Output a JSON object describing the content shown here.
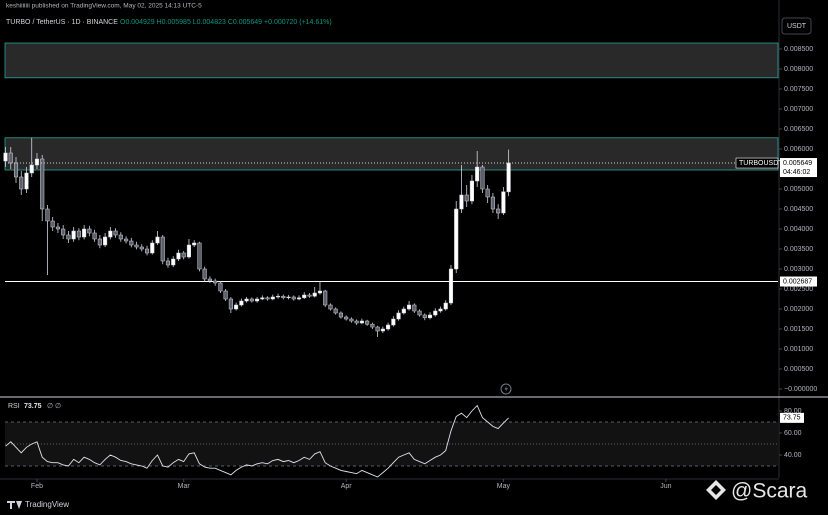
{
  "header": {
    "author_line": "keshiiiiiii published on TradingView.com, May 02, 2025 14:13 UTC-5",
    "symbol": "TURBO / TetherUS · 1D · BINANCE",
    "ohlc": "O0.004929 H0.005985 L0.004823 C0.005649 +0.000720 (+14.61%)",
    "currency": "USDT"
  },
  "chart_data": [
    {
      "type": "candlestick",
      "up_color": "#ffffff",
      "down_color": "#5d606b",
      "wick_color": "#d1d4dc",
      "open": [
        0.0057,
        0.0059,
        0.00565,
        0.0053,
        0.005,
        0.0054,
        0.0056,
        0.00575,
        0.0045,
        0.0042,
        0.00405,
        0.004,
        0.00385,
        0.00375,
        0.00395,
        0.0038,
        0.004,
        0.0039,
        0.00375,
        0.0036,
        0.0038,
        0.00395,
        0.00385,
        0.00375,
        0.0037,
        0.0036,
        0.00355,
        0.0035,
        0.0034,
        0.00365,
        0.0038,
        0.0032,
        0.0031,
        0.00325,
        0.0034,
        0.0033,
        0.0036,
        0.00365,
        0.003,
        0.00275,
        0.0027,
        0.00265,
        0.00245,
        0.00225,
        0.002,
        0.0021,
        0.0022,
        0.00225,
        0.0022,
        0.00225,
        0.00228,
        0.00225,
        0.0023,
        0.00232,
        0.00228,
        0.0023,
        0.00225,
        0.00228,
        0.00235,
        0.00232,
        0.0024,
        0.00245,
        0.0021,
        0.002,
        0.0019,
        0.0018,
        0.00175,
        0.0017,
        0.00165,
        0.0017,
        0.00162,
        0.00155,
        0.00145,
        0.0015,
        0.0016,
        0.00175,
        0.0019,
        0.002,
        0.0021,
        0.00195,
        0.00185,
        0.00178,
        0.00185,
        0.00195,
        0.002,
        0.00215,
        0.003,
        0.0045,
        0.00485,
        0.0047,
        0.0052,
        0.00555,
        0.005,
        0.0048,
        0.0045,
        0.0044,
        0.004929
      ],
      "high": [
        0.00605,
        0.00605,
        0.0058,
        0.00545,
        0.00555,
        0.00628,
        0.0059,
        0.00585,
        0.0046,
        0.0043,
        0.00415,
        0.0041,
        0.00395,
        0.00405,
        0.00402,
        0.0041,
        0.00408,
        0.00398,
        0.00385,
        0.0039,
        0.00405,
        0.00402,
        0.00392,
        0.00382,
        0.00378,
        0.00368,
        0.00362,
        0.00358,
        0.00372,
        0.00395,
        0.00385,
        0.00328,
        0.00332,
        0.00348,
        0.00345,
        0.00375,
        0.00372,
        0.00368,
        0.00306,
        0.00282,
        0.00276,
        0.0027,
        0.0025,
        0.0023,
        0.00216,
        0.00226,
        0.0023,
        0.00229,
        0.0023,
        0.00234,
        0.00232,
        0.00236,
        0.00238,
        0.00236,
        0.00235,
        0.00234,
        0.00234,
        0.00242,
        0.0024,
        0.00255,
        0.0027,
        0.00248,
        0.00214,
        0.00204,
        0.00194,
        0.00184,
        0.00179,
        0.00174,
        0.00176,
        0.00173,
        0.00166,
        0.00158,
        0.00156,
        0.00166,
        0.00182,
        0.00197,
        0.00206,
        0.0022,
        0.00214,
        0.00199,
        0.00189,
        0.00192,
        0.00202,
        0.00206,
        0.00222,
        0.0031,
        0.0047,
        0.0056,
        0.0051,
        0.00535,
        0.00595,
        0.0056,
        0.0051,
        0.0049,
        0.00462,
        0.00505,
        0.005985
      ],
      "low": [
        0.00555,
        0.0055,
        0.00515,
        0.00485,
        0.0049,
        0.0053,
        0.0055,
        0.0042,
        0.00285,
        0.00395,
        0.0039,
        0.00375,
        0.00365,
        0.00368,
        0.00372,
        0.00374,
        0.00382,
        0.00368,
        0.00352,
        0.00355,
        0.00374,
        0.00378,
        0.00368,
        0.00364,
        0.00354,
        0.00349,
        0.00344,
        0.00334,
        0.00336,
        0.0036,
        0.00312,
        0.00303,
        0.00305,
        0.0032,
        0.00324,
        0.00326,
        0.00355,
        0.00294,
        0.00268,
        0.00265,
        0.00258,
        0.0024,
        0.0022,
        0.0019,
        0.00196,
        0.00206,
        0.00216,
        0.00216,
        0.00216,
        0.00222,
        0.00221,
        0.00222,
        0.00226,
        0.00224,
        0.00224,
        0.00221,
        0.00222,
        0.00225,
        0.00228,
        0.00229,
        0.00236,
        0.00205,
        0.00196,
        0.00186,
        0.00176,
        0.00171,
        0.00166,
        0.0016,
        0.00162,
        0.00158,
        0.0015,
        0.0013,
        0.0014,
        0.00146,
        0.00156,
        0.00171,
        0.00186,
        0.00196,
        0.0019,
        0.00181,
        0.00172,
        0.00174,
        0.00181,
        0.00191,
        0.00196,
        0.0021,
        0.0029,
        0.0044,
        0.00455,
        0.00462,
        0.00505,
        0.0049,
        0.00465,
        0.0044,
        0.00425,
        0.00435,
        0.004823
      ],
      "close": [
        0.0059,
        0.00565,
        0.0053,
        0.005,
        0.0054,
        0.0056,
        0.00575,
        0.0045,
        0.0042,
        0.00405,
        0.004,
        0.00385,
        0.00375,
        0.00395,
        0.0038,
        0.004,
        0.0039,
        0.00375,
        0.0036,
        0.0038,
        0.00395,
        0.00385,
        0.00375,
        0.0037,
        0.0036,
        0.00355,
        0.0035,
        0.0034,
        0.00365,
        0.0038,
        0.0032,
        0.0031,
        0.00325,
        0.0034,
        0.0033,
        0.0036,
        0.00365,
        0.003,
        0.00275,
        0.0027,
        0.00265,
        0.00245,
        0.00225,
        0.002,
        0.0021,
        0.0022,
        0.00225,
        0.0022,
        0.00225,
        0.00228,
        0.00225,
        0.0023,
        0.00232,
        0.00228,
        0.0023,
        0.00225,
        0.00228,
        0.00235,
        0.00232,
        0.0024,
        0.00245,
        0.0021,
        0.002,
        0.0019,
        0.0018,
        0.00175,
        0.0017,
        0.00165,
        0.0017,
        0.00162,
        0.00155,
        0.00145,
        0.0015,
        0.0016,
        0.00175,
        0.0019,
        0.002,
        0.0021,
        0.00195,
        0.00185,
        0.00178,
        0.00185,
        0.00195,
        0.002,
        0.00215,
        0.003,
        0.0045,
        0.00485,
        0.0047,
        0.0052,
        0.00555,
        0.005,
        0.0048,
        0.0045,
        0.0044,
        0.00493,
        0.005649
      ],
      "xlim": [
        -0.1,
        147.4
      ],
      "ylim": [
        -0.000175,
        0.009725
      ],
      "xticks": [
        {
          "value": 6,
          "label": "Feb"
        },
        {
          "value": 34,
          "label": "Mar"
        },
        {
          "value": 65,
          "label": "Apr"
        },
        {
          "value": 95,
          "label": "May"
        },
        {
          "value": 126,
          "label": "Jun"
        }
      ],
      "yticks": [
        {
          "value": 0,
          "label": "−0.000000"
        },
        {
          "value": 0.0005,
          "label": "0.000500"
        },
        {
          "value": 0.001,
          "label": "0.001000"
        },
        {
          "value": 0.0015,
          "label": "0.001500"
        },
        {
          "value": 0.002,
          "label": "0.002000"
        },
        {
          "value": 0.0025,
          "label": "0.002500"
        },
        {
          "value": 0.003,
          "label": "0.003000"
        },
        {
          "value": 0.0035,
          "label": "0.003500"
        },
        {
          "value": 0.004,
          "label": "0.004000"
        },
        {
          "value": 0.0045,
          "label": "0.004500"
        },
        {
          "value": 0.005,
          "label": "0.005000"
        },
        {
          "value": 0.006,
          "label": "0.006000"
        },
        {
          "value": 0.0065,
          "label": "0.006500"
        },
        {
          "value": 0.007,
          "label": "0.007000"
        },
        {
          "value": 0.0075,
          "label": "0.007500"
        },
        {
          "value": 0.008,
          "label": "0.008000"
        },
        {
          "value": 0.0085,
          "label": "0.008500"
        }
      ],
      "zones": [
        [
          0.00778,
          0.00865
        ],
        [
          0.005475,
          0.00628
        ]
      ],
      "zone_color": "#26a69a",
      "hlines": [
        {
          "value": 0.002687,
          "label": "0.002687"
        }
      ],
      "price_label": {
        "name": "TURBOUSDT",
        "value": 0.005649,
        "label": "0.005649",
        "countdown": "04:46:02"
      }
    },
    {
      "type": "line",
      "title": "RSI",
      "settings": "∅ ∅",
      "color": "#e0e3eb",
      "values": [
        48,
        52,
        47,
        42,
        47,
        50,
        52,
        38,
        34,
        33,
        33,
        31,
        30,
        36,
        33,
        38,
        36,
        33,
        31,
        36,
        40,
        38,
        35,
        34,
        32,
        31,
        30,
        28,
        35,
        40,
        30,
        29,
        33,
        36,
        34,
        41,
        42,
        32,
        29,
        28,
        28,
        26,
        24,
        22,
        26,
        29,
        31,
        30,
        32,
        33,
        32,
        35,
        36,
        34,
        35,
        33,
        35,
        38,
        36,
        41,
        43,
        33,
        30,
        28,
        26,
        25,
        24,
        23,
        26,
        24,
        22,
        20,
        24,
        28,
        33,
        38,
        40,
        42,
        36,
        34,
        32,
        35,
        38,
        40,
        44,
        62,
        75,
        78,
        74,
        80,
        85,
        74,
        70,
        66,
        64,
        69,
        73.75
      ],
      "ylim": [
        19.1,
        91.8
      ],
      "levels": [
        30,
        50,
        70
      ],
      "yticks": [
        {
          "value": 40,
          "label": "40.00"
        },
        {
          "value": 60,
          "label": "60.00"
        },
        {
          "value": 80,
          "label": "80.00"
        }
      ]
    }
  ],
  "footer": {
    "brand": "TradingView",
    "watermark": "@Scara"
  }
}
